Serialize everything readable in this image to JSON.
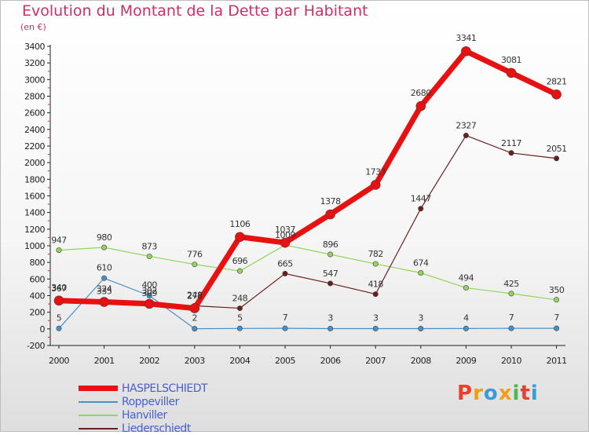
{
  "header": {
    "title": "Evolution du Montant de la Dette par Habitant",
    "subtitle": "(en €)"
  },
  "logo": {
    "text": "Proxiti",
    "colors": [
      "#e8402a",
      "#f29d13",
      "#3a9bd8",
      "#f29d13",
      "#4fb848",
      "#e8402a",
      "#3a9bd8"
    ]
  },
  "chart_data": {
    "type": "line",
    "title": "Evolution du Montant de la Dette par Habitant",
    "ylabel": "(en €)",
    "xlabel": "",
    "x": [
      "2000",
      "2001",
      "2002",
      "2003",
      "2004",
      "2005",
      "2006",
      "2007",
      "2008",
      "2009",
      "2010",
      "2011"
    ],
    "ylim": [
      -200,
      3400
    ],
    "yticks": [
      -200,
      0,
      200,
      400,
      600,
      800,
      1000,
      1200,
      1400,
      1600,
      1800,
      2000,
      2200,
      2400,
      2600,
      2800,
      3000,
      3200,
      3400
    ],
    "grid": false,
    "legend": "bottom-left",
    "series": [
      {
        "name": "HASPELSCHIEDT",
        "color": "#e81010",
        "values": [
          340,
          324,
          302,
          248,
          1106,
          1037,
          1378,
          1733,
          2680,
          3341,
          3081,
          2821
        ],
        "labels": [
          "340",
          "324",
          "302",
          "248",
          "1106",
          "1037",
          "1378",
          "1733",
          "2680",
          "3341",
          "3081",
          "2821"
        ]
      },
      {
        "name": "Roppeviller",
        "color": "#4a90c8",
        "values": [
          5,
          610,
          400,
          2,
          5,
          7,
          3,
          3,
          3,
          4,
          7,
          7
        ],
        "labels": [
          "5",
          "610",
          "400",
          "2",
          "5",
          "7",
          "3",
          "3",
          "3",
          "4",
          "7",
          "7"
        ]
      },
      {
        "name": "Hanviller",
        "color": "#8fd65a",
        "values": [
          947,
          980,
          873,
          776,
          696,
          1009,
          896,
          782,
          674,
          494,
          425,
          350
        ],
        "labels": [
          "947",
          "980",
          "873",
          "776",
          "696",
          "1009",
          "896",
          "782",
          "674",
          "494",
          "425",
          "350"
        ]
      },
      {
        "name": "Liederschiedt",
        "color": "#6b1e1e",
        "values": [
          367,
          335,
          309,
          278,
          248,
          665,
          547,
          418,
          1447,
          2327,
          2117,
          2051
        ],
        "labels": [
          "367",
          "335",
          "309",
          "278",
          "248",
          "665",
          "547",
          "418",
          "1447",
          "2327",
          "2117",
          "2051"
        ]
      }
    ]
  }
}
